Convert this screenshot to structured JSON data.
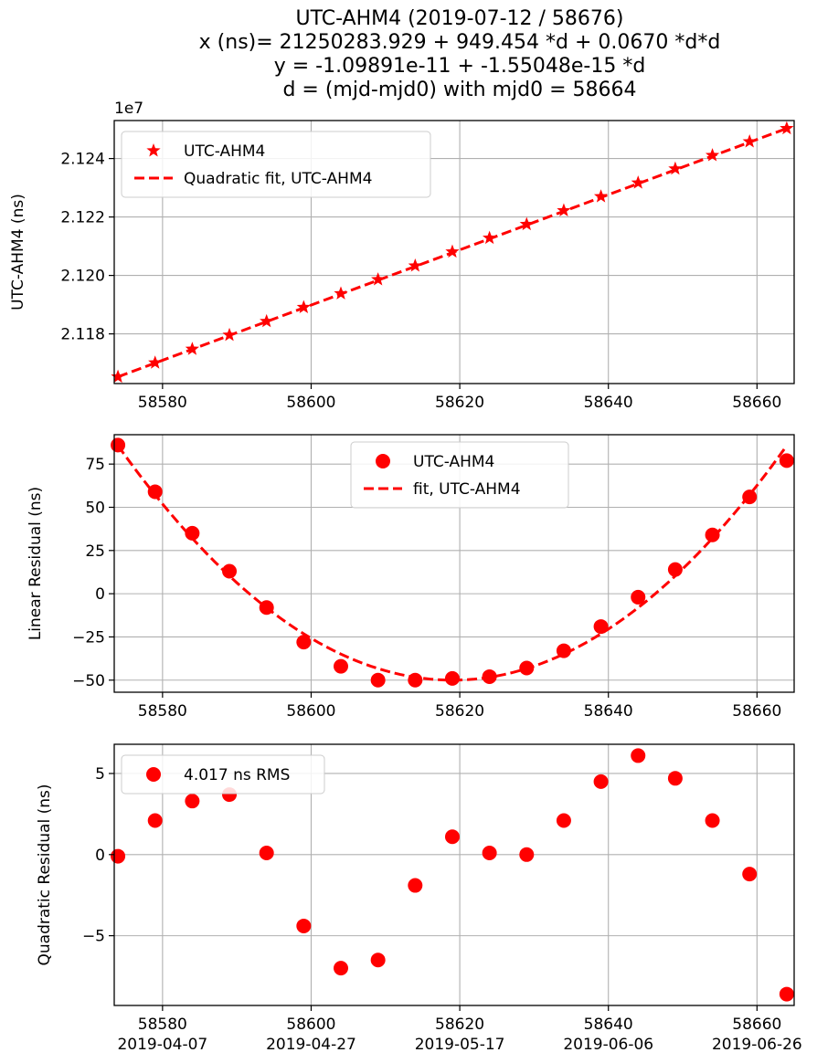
{
  "figure": {
    "title_lines": [
      "UTC-AHM4 (2019-07-12 / 58676)",
      "x (ns)= 21250283.929 + 949.454 *d + 0.0670 *d*d",
      "y = -1.09891e-11 + -1.55048e-15 *d",
      "d = (mjd-mjd0) with mjd0 = 58664"
    ]
  },
  "chart_data": [
    {
      "type": "line",
      "ylabel": "UTC-AHM4 (ns)",
      "offset_label": "1e7",
      "xlim": [
        58573.5,
        58665
      ],
      "ylim": [
        2.1163,
        2.1253
      ],
      "xticks": [
        58580,
        58600,
        58620,
        58640,
        58660
      ],
      "xtick_labels": [
        "58580",
        "58600",
        "58620",
        "58640",
        "58660"
      ],
      "yticks": [
        2.118,
        2.12,
        2.122,
        2.124
      ],
      "ytick_labels": [
        "2.118",
        "2.120",
        "2.122",
        "2.124"
      ],
      "legend_position": "upper-left",
      "series": [
        {
          "name": "UTC-AHM4",
          "marker": "star",
          "x": [
            58574,
            58579,
            58584,
            58589,
            58594,
            58599,
            58604,
            58609,
            58614,
            58619,
            58624,
            58629,
            58634,
            58639,
            58644,
            58649,
            58654,
            58659,
            58664
          ],
          "y": [
            2.11653,
            2.11701,
            2.11748,
            2.11796,
            2.11843,
            2.11891,
            2.11938,
            2.11986,
            2.12033,
            2.12081,
            2.12128,
            2.12175,
            2.12222,
            2.1227,
            2.12317,
            2.12365,
            2.12411,
            2.12458,
            2.12503
          ]
        },
        {
          "name": "Quadratic fit, UTC-AHM4",
          "style": "dashed",
          "x": [
            58574,
            58664
          ],
          "y": [
            2.11653,
            2.12503
          ]
        }
      ],
      "color": "#ff0000"
    },
    {
      "type": "scatter",
      "ylabel": "Linear Residual (ns)",
      "xlim": [
        58573.5,
        58665
      ],
      "ylim": [
        -57,
        92
      ],
      "xticks": [
        58580,
        58600,
        58620,
        58640,
        58660
      ],
      "xtick_labels": [
        "58580",
        "58600",
        "58620",
        "58640",
        "58660"
      ],
      "yticks": [
        -50,
        -25,
        0,
        25,
        50,
        75
      ],
      "ytick_labels": [
        "−50",
        "−25",
        "0",
        "25",
        "50",
        "75"
      ],
      "legend_position": "top-center",
      "series": [
        {
          "name": "UTC-AHM4",
          "marker": "circle",
          "x": [
            58574,
            58579,
            58584,
            58589,
            58594,
            58599,
            58604,
            58609,
            58614,
            58619,
            58624,
            58629,
            58634,
            58639,
            58644,
            58649,
            58654,
            58659,
            58664
          ],
          "y": [
            86,
            59,
            35,
            13,
            -8,
            -28,
            -42,
            -50,
            -50,
            -49,
            -48,
            -43,
            -33,
            -19,
            -2,
            14,
            34,
            56,
            77
          ]
        },
        {
          "name": "fit, UTC-AHM4",
          "style": "dashed",
          "quadratic": {
            "vertex_x": 58619,
            "vertex_y": -50.0,
            "a": 0.067
          },
          "x_range": [
            58574,
            58664
          ]
        }
      ],
      "color": "#ff0000"
    },
    {
      "type": "scatter",
      "ylabel": "Quadratic Residual (ns)",
      "xlim": [
        58573.5,
        58665
      ],
      "ylim": [
        -9.3,
        6.8
      ],
      "xticks": [
        58580,
        58600,
        58620,
        58640,
        58660
      ],
      "xtick_labels": [
        "58580",
        "58600",
        "58620",
        "58640",
        "58660"
      ],
      "xtick_dates": [
        "2019-04-07",
        "2019-04-27",
        "2019-05-17",
        "2019-06-06",
        "2019-06-26"
      ],
      "yticks": [
        -5,
        0,
        5
      ],
      "ytick_labels": [
        "−5",
        "0",
        "5"
      ],
      "legend_position": "upper-left",
      "series": [
        {
          "name": "4.017 ns RMS",
          "marker": "circle",
          "x": [
            58574,
            58579,
            58584,
            58589,
            58594,
            58599,
            58604,
            58609,
            58614,
            58619,
            58624,
            58629,
            58634,
            58639,
            58644,
            58649,
            58654,
            58659,
            58664
          ],
          "y": [
            -0.1,
            2.1,
            3.3,
            3.7,
            0.1,
            -4.4,
            -7.0,
            -6.5,
            -1.9,
            1.1,
            0.1,
            0.0,
            2.1,
            4.5,
            6.1,
            4.7,
            2.1,
            -1.2,
            -8.6
          ]
        }
      ],
      "color": "#ff0000"
    }
  ]
}
